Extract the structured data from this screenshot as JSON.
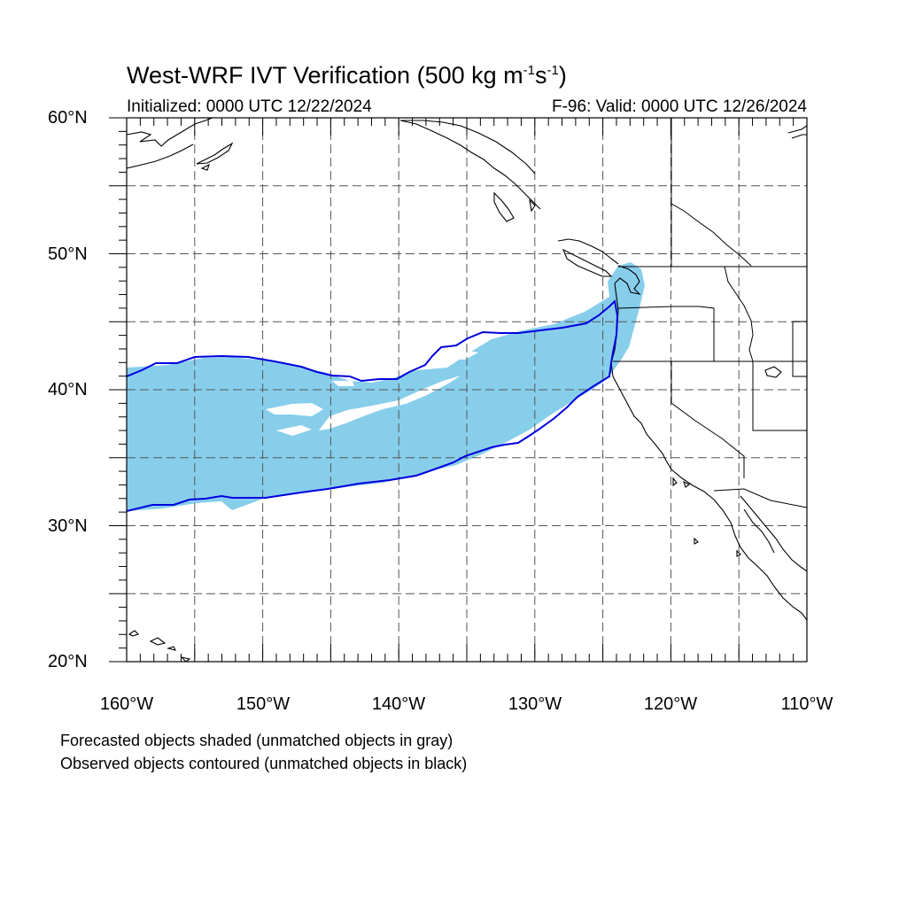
{
  "title": {
    "main": "West-WRF IVT Verification",
    "units": "(500 kg m",
    "exp1": "-1",
    "s": "s",
    "exp2": "-1",
    "close": ")"
  },
  "subtitle": {
    "initialized": "Initialized: 0000 UTC 12/22/2024",
    "valid": "F-96: Valid: 0000 UTC 12/26/2024"
  },
  "lat_labels": [
    "60°N",
    "50°N",
    "40°N",
    "30°N",
    "20°N"
  ],
  "lon_labels": [
    "160°W",
    "150°W",
    "140°W",
    "130°W",
    "120°W",
    "110°W"
  ],
  "notes": [
    "Forecasted objects shaded (unmatched objects in gray)",
    "Observed objects contoured (unmatched objects in black)"
  ],
  "map": {
    "lon_range": [
      -160,
      -110
    ],
    "lat_range": [
      20,
      60
    ],
    "grid_lon_step": 5,
    "grid_lat_step": 5,
    "forecast_fill_color": "#87ceeb",
    "observed_contour_color": "#0000dd"
  }
}
